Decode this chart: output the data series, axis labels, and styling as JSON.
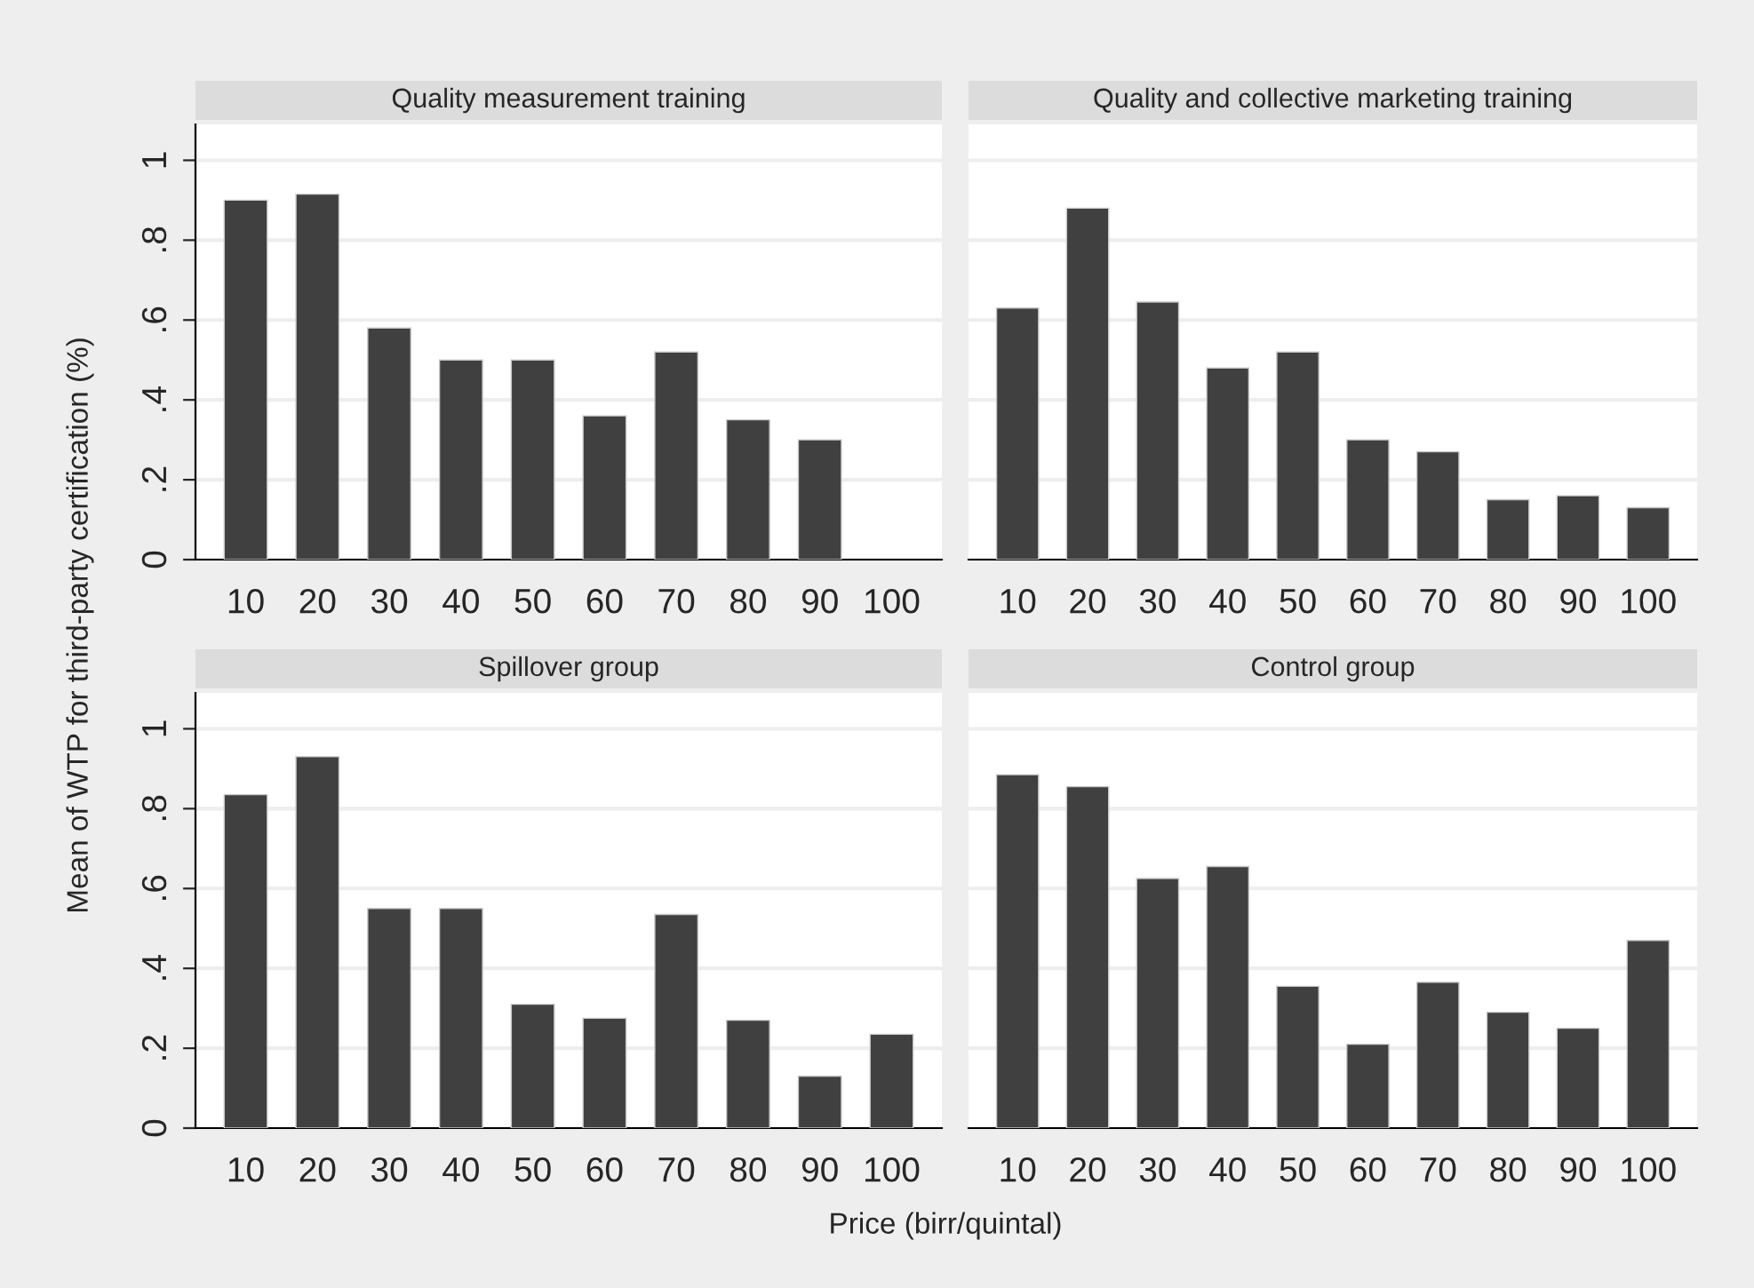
{
  "chart_data": [
    {
      "type": "bar",
      "title": "Quality measurement training",
      "ylabel": "Mean of WTP for third-party certification (%)",
      "categories": [
        "10",
        "20",
        "30",
        "40",
        "50",
        "60",
        "70",
        "80",
        "90",
        "100"
      ],
      "color": "#404040",
      "ylim": [
        0,
        1.09
      ],
      "yticks": [
        0,
        {
          "value": 0.2,
          "label": ".2"
        },
        {
          "value": 0.4,
          "label": ".4"
        },
        {
          "value": 0.6,
          "label": ".6"
        },
        {
          "value": 0.8,
          "label": ".8"
        },
        1
      ],
      "grid": "y",
      "values": [
        0.9,
        0.915,
        0.58,
        0.5,
        0.5,
        0.36,
        0.52,
        0.35,
        0.3,
        null
      ]
    },
    {
      "type": "bar",
      "title": "Quality and collective marketing training",
      "categories": [
        "10",
        "20",
        "30",
        "40",
        "50",
        "60",
        "70",
        "80",
        "90",
        "100"
      ],
      "color": "#404040",
      "ylim": [
        0,
        1.09
      ],
      "yticks": [
        0,
        0.2,
        0.4,
        0.6,
        0.8,
        1
      ],
      "grid": "y",
      "tick_labels": "x",
      "values": [
        0.63,
        0.88,
        0.645,
        0.48,
        0.52,
        0.3,
        0.27,
        0.15,
        0.16,
        0.13
      ]
    },
    {
      "type": "bar",
      "title": "Spillover group",
      "xlabel": "Price (birr/quintal)",
      "categories": [
        "10",
        "20",
        "30",
        "40",
        "50",
        "60",
        "70",
        "80",
        "90",
        "100"
      ],
      "color": "#404040",
      "ylim": [
        0,
        1.09
      ],
      "yticks": [
        0,
        {
          "value": 0.2,
          "label": ".2"
        },
        {
          "value": 0.4,
          "label": ".4"
        },
        {
          "value": 0.6,
          "label": ".6"
        },
        {
          "value": 0.8,
          "label": ".8"
        },
        1
      ],
      "grid": "y",
      "values": [
        0.835,
        0.93,
        0.55,
        0.55,
        0.31,
        0.275,
        0.535,
        0.27,
        0.13,
        0.235
      ]
    },
    {
      "type": "bar",
      "title": "Control group",
      "categories": [
        "10",
        "20",
        "30",
        "40",
        "50",
        "60",
        "70",
        "80",
        "90",
        "100"
      ],
      "color": "#404040",
      "ylim": [
        0,
        1.09
      ],
      "yticks": [
        0,
        0.2,
        0.4,
        0.6,
        0.8,
        1
      ],
      "grid": "y",
      "tick_labels": "x",
      "values": [
        0.885,
        0.855,
        0.625,
        0.655,
        0.355,
        0.21,
        0.365,
        0.29,
        0.25,
        0.47
      ]
    }
  ]
}
